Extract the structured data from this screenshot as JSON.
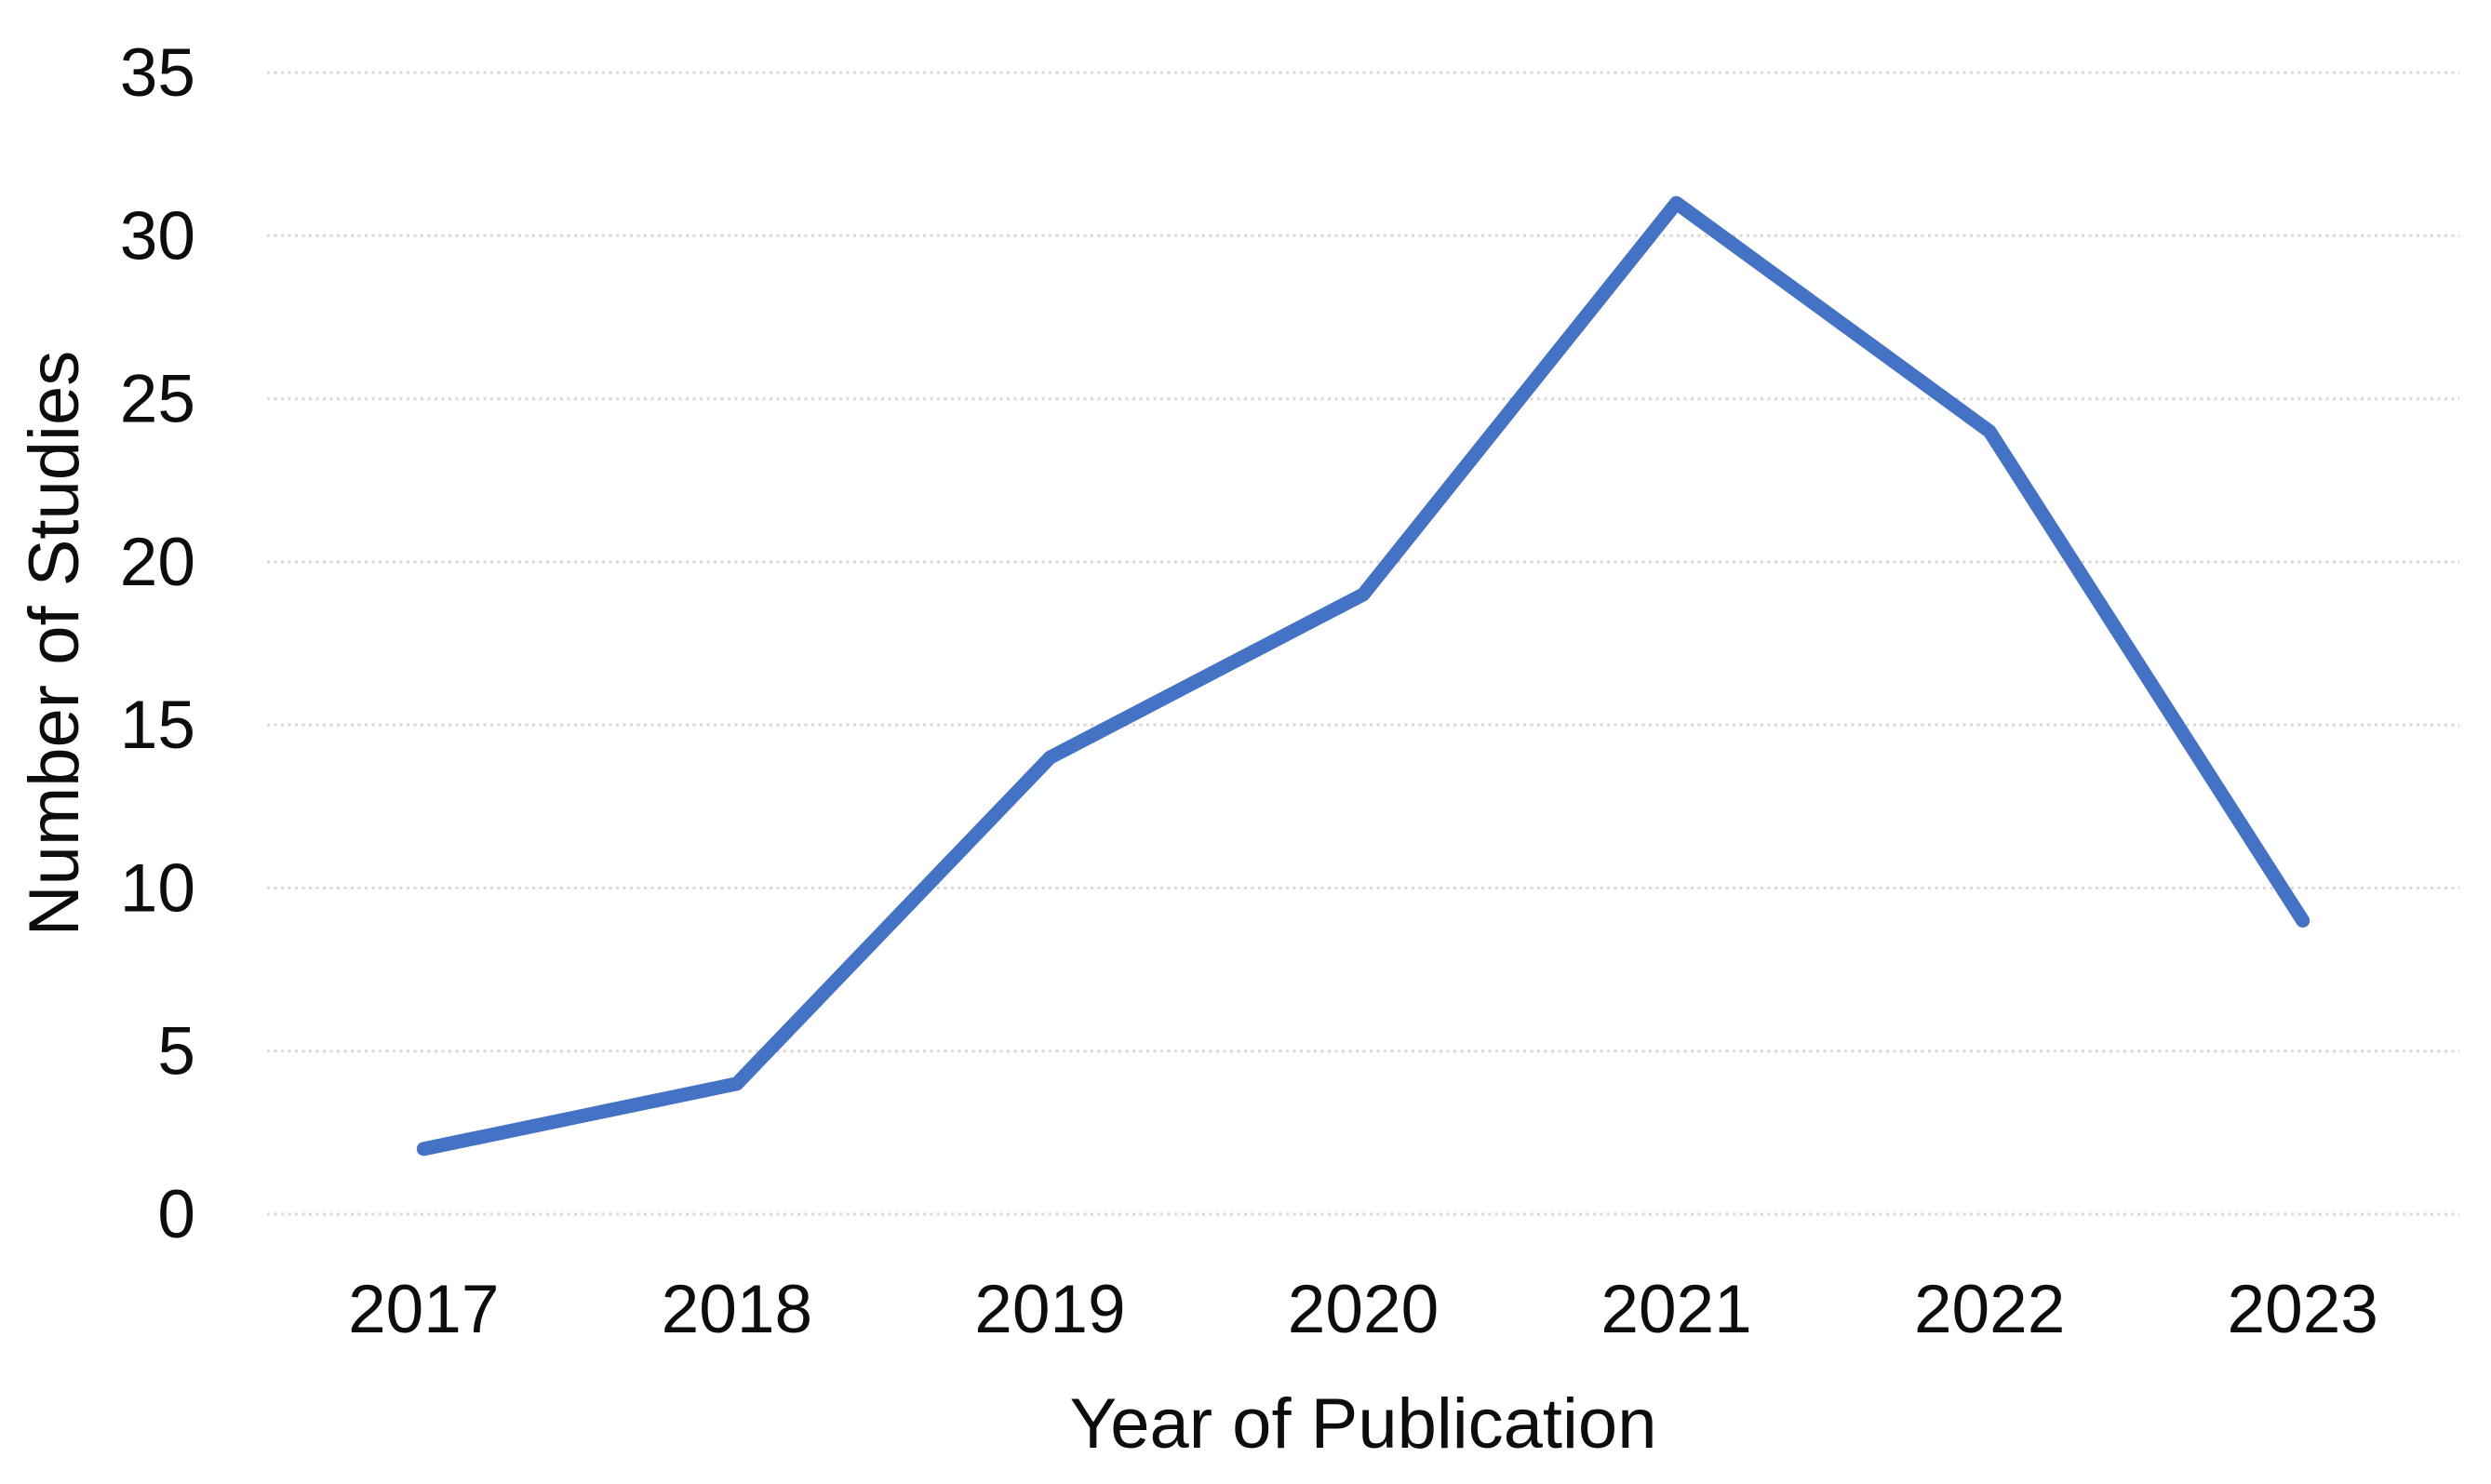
{
  "chart_data": {
    "type": "line",
    "categories": [
      "2017",
      "2018",
      "2019",
      "2020",
      "2021",
      "2022",
      "2023"
    ],
    "series": [
      {
        "values": [
          2,
          4,
          14,
          19,
          31,
          24,
          9
        ]
      }
    ],
    "title": "",
    "xlabel": "Year of Publication",
    "ylabel": "Number of Studies",
    "ylim": [
      0,
      35
    ],
    "ytick_step": 5,
    "ytick_labels": [
      "0",
      "5",
      "10",
      "15",
      "20",
      "25",
      "30",
      "35"
    ],
    "grid": "horizontal-dotted",
    "legend": "none",
    "line_color": "#4472C4",
    "gridline_color": "#D8D8D8",
    "text_color": "#0D0D0D",
    "background_color": "#FFFFFF"
  }
}
